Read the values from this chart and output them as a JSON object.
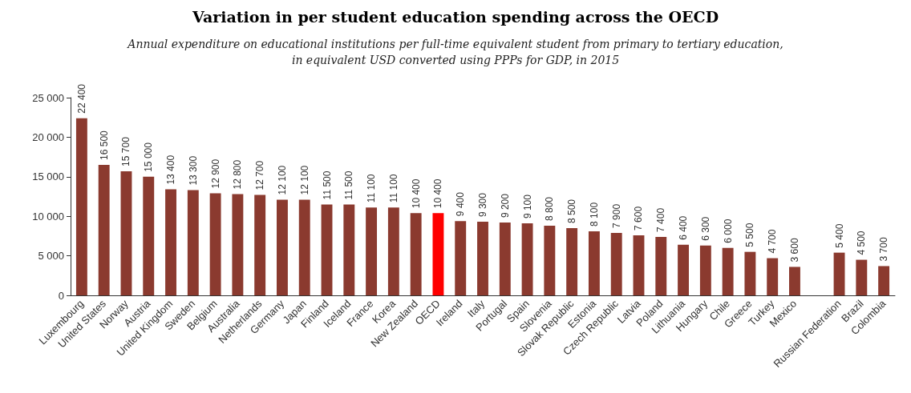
{
  "chart_data": {
    "type": "bar",
    "title": "Variation in per student education spending across the OECD",
    "subtitle": "Annual expenditure on educational institutions per full-time equivalent student from primary to tertiary education,\nin equivalent USD converted using PPPs for GDP, in 2015",
    "categories": [
      "Luxembourg",
      "United States",
      "Norway",
      "Austria",
      "United Kingdom",
      "Sweden",
      "Belgium",
      "Australia",
      "Netherlands",
      "Germany",
      "Japan",
      "Finland",
      "Iceland",
      "France",
      "Korea",
      "New Zealand",
      "OECD",
      "Ireland",
      "Italy",
      "Portugal",
      "Spain",
      "Slovenia",
      "Slovak Republic",
      "Estonia",
      "Czech Republic",
      "Latvia",
      "Poland",
      "Lithuania",
      "Hungary",
      "Chile",
      "Greece",
      "Turkey",
      "Mexico",
      null,
      "Russian Federation",
      "Brazil",
      "Colombia"
    ],
    "values": [
      22400,
      16500,
      15700,
      15000,
      13400,
      13300,
      12900,
      12800,
      12700,
      12100,
      12100,
      11500,
      11500,
      11100,
      11100,
      10400,
      10400,
      9400,
      9300,
      9200,
      9100,
      8800,
      8500,
      8100,
      7900,
      7600,
      7400,
      6400,
      6300,
      6000,
      5500,
      4700,
      3600,
      null,
      5400,
      4500,
      3700
    ],
    "value_labels": [
      "22 400",
      "16 500",
      "15 700",
      "15 000",
      "13 400",
      "13 300",
      "12 900",
      "12 800",
      "12 700",
      "12 100",
      "12 100",
      "11 500",
      "11 500",
      "11 100",
      "11 100",
      "10 400",
      "10 400",
      "9 400",
      "9 300",
      "9 200",
      "9 100",
      "8 800",
      "8 500",
      "8 100",
      "7 900",
      "7 600",
      "7 400",
      "6 400",
      "6 300",
      "6 000",
      "5 500",
      "4 700",
      "3 600",
      null,
      "5 400",
      "4 500",
      "3 700"
    ],
    "colors": [
      "#8b3a2f",
      "#8b3a2f",
      "#8b3a2f",
      "#8b3a2f",
      "#8b3a2f",
      "#8b3a2f",
      "#8b3a2f",
      "#8b3a2f",
      "#8b3a2f",
      "#8b3a2f",
      "#8b3a2f",
      "#8b3a2f",
      "#8b3a2f",
      "#8b3a2f",
      "#8b3a2f",
      "#8b3a2f",
      "#ff0000",
      "#8b3a2f",
      "#8b3a2f",
      "#8b3a2f",
      "#8b3a2f",
      "#8b3a2f",
      "#8b3a2f",
      "#8b3a2f",
      "#8b3a2f",
      "#8b3a2f",
      "#8b3a2f",
      "#8b3a2f",
      "#8b3a2f",
      "#8b3a2f",
      "#8b3a2f",
      "#8b3a2f",
      "#8b3a2f",
      "#8b3a2f",
      "#8b3a2f",
      "#8b3a2f",
      "#8b3a2f"
    ],
    "ylim": [
      0,
      25000
    ],
    "yticks": [
      0,
      {
        "value": 5000,
        "label": "5 000"
      },
      {
        "value": 10000,
        "label": "10 000"
      },
      {
        "value": 15000,
        "label": "15 000"
      },
      {
        "value": 20000,
        "label": "20 000"
      },
      {
        "value": 25000,
        "label": "25 000"
      }
    ],
    "grid": false
  }
}
